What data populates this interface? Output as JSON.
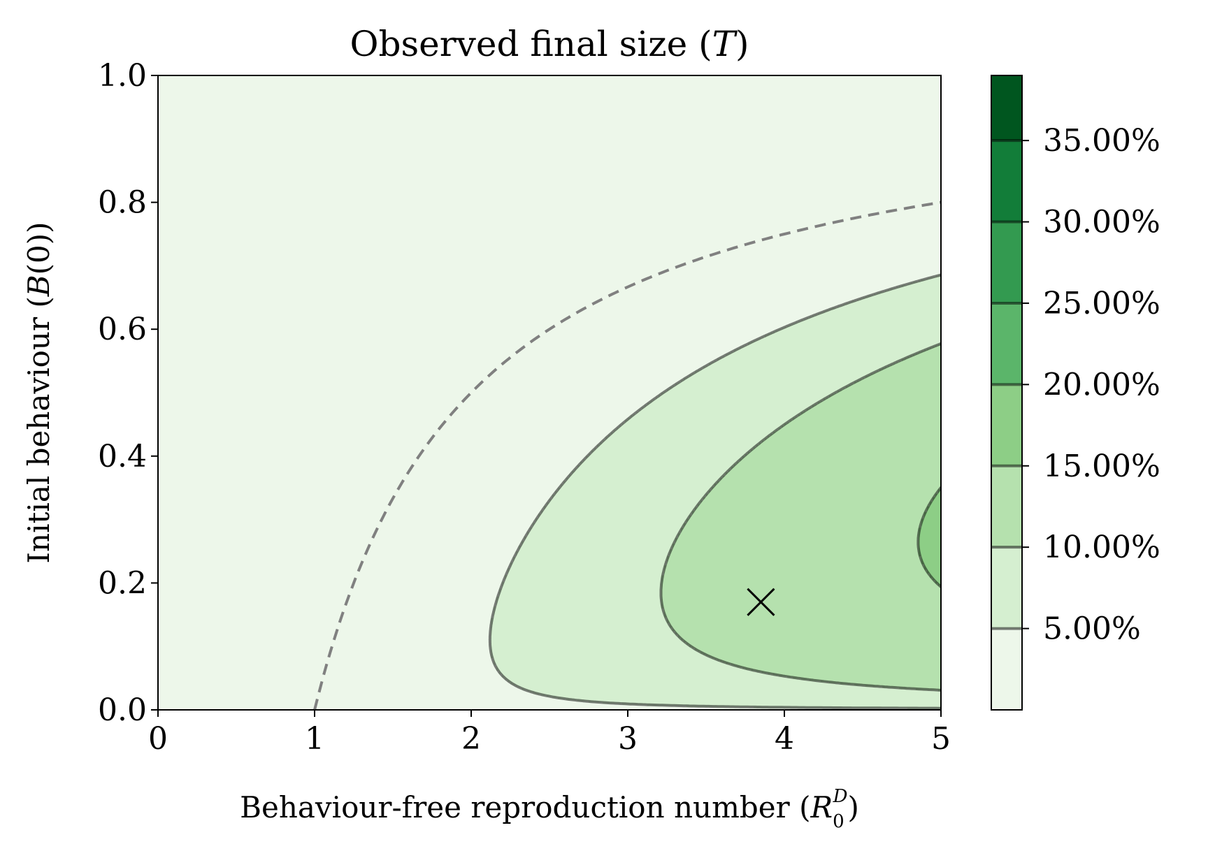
{
  "chart_data": {
    "type": "contour",
    "title": "Observed final size (T)",
    "title_parts": [
      "Observed final size (",
      "T",
      ")"
    ],
    "xlabel": "Behaviour-free reproduction number (R0D)",
    "xlabel_parts": [
      "Behaviour-free reproduction number (",
      "R",
      "0",
      "D",
      ")"
    ],
    "ylabel": "Initial behaviour (B(0))",
    "ylabel_parts": [
      "Initial behaviour (",
      "B",
      "(0))"
    ],
    "xlim": [
      0,
      5
    ],
    "ylim": [
      0,
      1
    ],
    "x_ticks": [
      0,
      1,
      2,
      3,
      4,
      5
    ],
    "x_tick_labels": [
      "0",
      "1",
      "2",
      "3",
      "4",
      "5"
    ],
    "y_ticks": [
      0.0,
      0.2,
      0.4,
      0.6,
      0.8,
      1.0
    ],
    "y_tick_labels": [
      "0.0",
      "0.2",
      "0.4",
      "0.6",
      "0.8",
      "1.0"
    ],
    "contour_levels": [
      0.05,
      0.1,
      0.15,
      0.2,
      0.25,
      0.3,
      0.35
    ],
    "colorbar": {
      "min": 0.0,
      "max": 0.39,
      "tick_values": [
        0.05,
        0.1,
        0.15,
        0.2,
        0.25,
        0.3,
        0.35
      ],
      "tick_labels": [
        "5.00%",
        "10.00%",
        "15.00%",
        "20.00%",
        "25.00%",
        "30.00%",
        "35.00%"
      ],
      "band_colors": [
        "#edf7ea",
        "#d5efd0",
        "#b5e1ae",
        "#8dce86",
        "#5bb56a",
        "#339a50",
        "#127d39",
        "#00561f"
      ]
    },
    "threshold_curve": {
      "style": "dashed",
      "color": "#808080",
      "description": "R0D(1 - B(0)) = 1",
      "points": [
        [
          1.0,
          0.0
        ],
        [
          1.25,
          0.2
        ],
        [
          1.67,
          0.4
        ],
        [
          2.5,
          0.6
        ],
        [
          5.0,
          0.8
        ]
      ]
    },
    "marker": {
      "symbol": "x",
      "x": 3.85,
      "y": 0.17,
      "color": "#000000"
    }
  }
}
